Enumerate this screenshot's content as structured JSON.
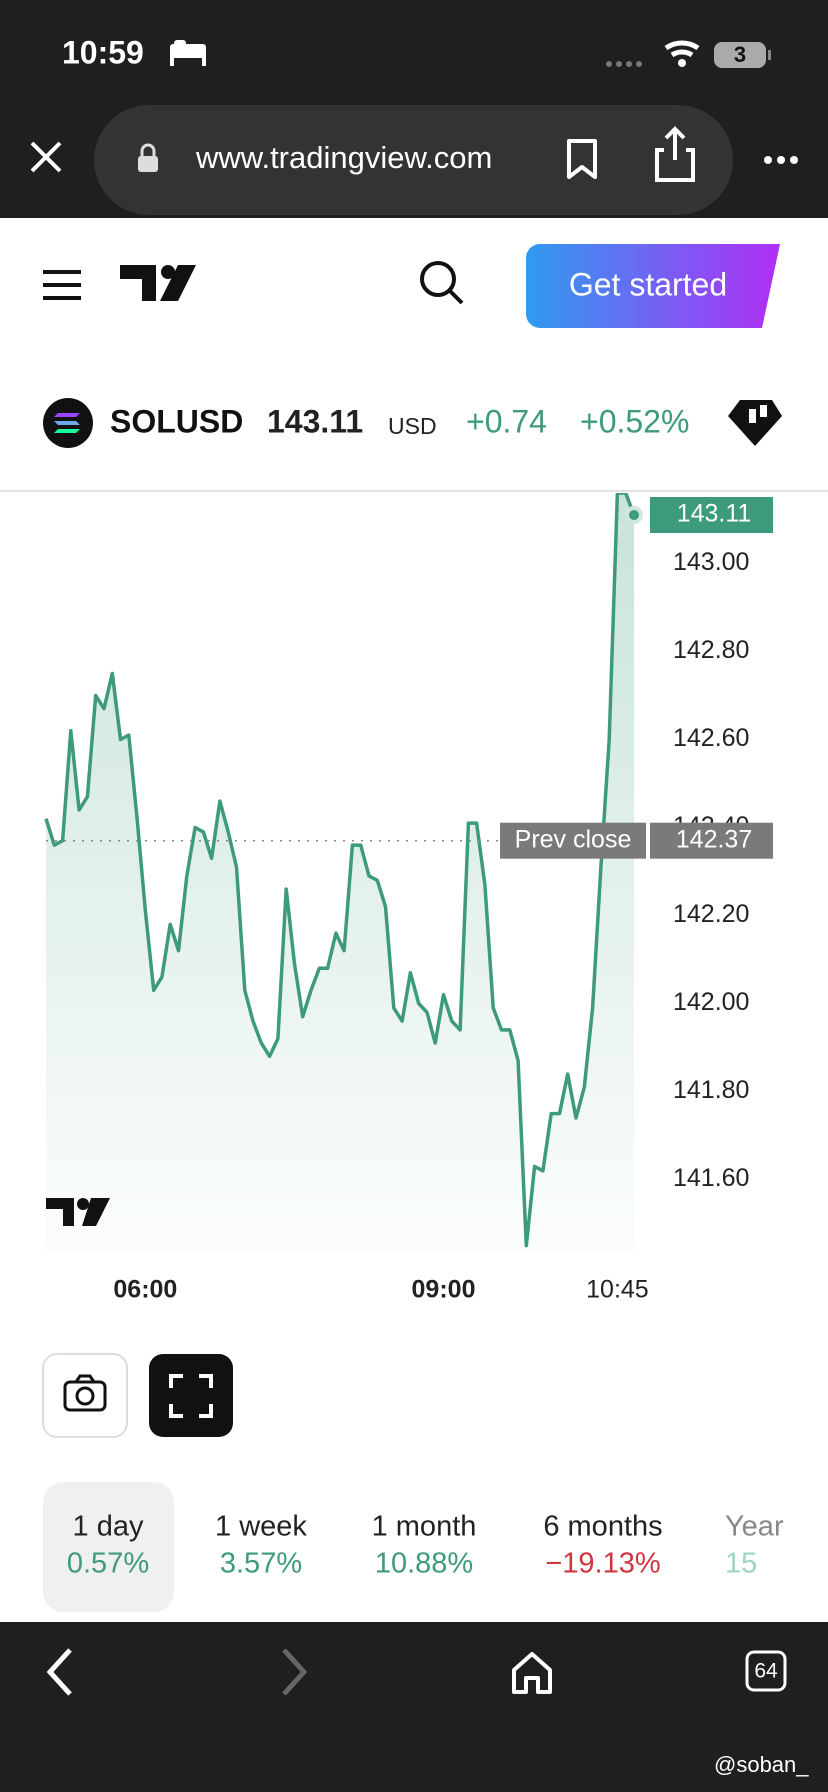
{
  "status_bar": {
    "time": "10:59",
    "battery": "3"
  },
  "browser": {
    "url": "www.tradingview.com",
    "tab_count": "64"
  },
  "header": {
    "cta": "Get started"
  },
  "ticker": {
    "symbol": "SOLUSD",
    "price": "143.11",
    "currency": "USD",
    "change": "+0.74",
    "change_percent": "+0.52%"
  },
  "chart_data": {
    "type": "line",
    "color": "#3d9a7d",
    "categories": [
      null,
      null,
      null,
      null,
      null,
      null,
      null,
      null,
      null,
      null,
      null,
      null,
      "06:00",
      null,
      null,
      null,
      null,
      null,
      null,
      null,
      null,
      null,
      null,
      null,
      null,
      null,
      null,
      null,
      null,
      null,
      null,
      null,
      null,
      null,
      null,
      null,
      null,
      null,
      null,
      null,
      null,
      null,
      null,
      null,
      null,
      null,
      null,
      null,
      "09:00",
      null,
      null,
      null,
      null,
      null,
      null,
      null,
      null,
      null,
      null,
      null,
      null,
      null,
      null,
      null,
      null,
      null,
      null,
      null,
      null,
      "10:45",
      null,
      null
    ],
    "values": [
      142.42,
      142.36,
      142.37,
      142.62,
      142.44,
      142.47,
      142.7,
      142.67,
      142.75,
      142.6,
      142.61,
      142.42,
      142.21,
      142.03,
      142.06,
      142.18,
      142.12,
      142.29,
      142.4,
      142.39,
      142.33,
      142.46,
      142.39,
      142.31,
      142.03,
      141.96,
      141.91,
      141.88,
      141.92,
      142.26,
      142.09,
      141.97,
      142.03,
      142.08,
      142.08,
      142.16,
      142.12,
      142.36,
      142.36,
      142.29,
      142.28,
      142.22,
      141.99,
      141.96,
      142.07,
      142.0,
      141.98,
      141.91,
      142.02,
      141.96,
      141.94,
      142.41,
      142.41,
      142.27,
      141.99,
      141.94,
      141.94,
      141.87,
      141.45,
      141.63,
      141.62,
      141.75,
      141.75,
      141.84,
      141.74,
      141.81,
      141.99,
      142.31,
      142.6,
      143.16,
      143.16,
      143.11
    ],
    "ylim": [
      141.44,
      143.16
    ],
    "yticks": [
      {
        "value": 141.6,
        "label": "141.60"
      },
      {
        "value": 141.8,
        "label": "141.80"
      },
      {
        "value": 142.0,
        "label": "142.00"
      },
      {
        "value": 142.2,
        "label": "142.20"
      },
      {
        "value": 142.4,
        "label": "142.40"
      },
      {
        "value": 142.6,
        "label": "142.60"
      },
      {
        "value": 142.8,
        "label": "142.80"
      },
      {
        "value": 143.0,
        "label": "143.00"
      }
    ],
    "prev_close": 142.37,
    "prev_close_label": "Prev close"
  },
  "periods": [
    {
      "label": "1 day",
      "change": "0.57%",
      "color": "#3d9a7d"
    },
    {
      "label": "1 week",
      "change": "3.57%",
      "color": "#3d9a7d"
    },
    {
      "label": "1 month",
      "change": "10.88%",
      "color": "#3d9a7d"
    },
    {
      "label": "6 months",
      "change": "−19.13%",
      "color": "#d1363f"
    },
    {
      "label": "Year",
      "change": "15",
      "color": "#9fd4c1"
    }
  ],
  "watermark": "@soban_"
}
